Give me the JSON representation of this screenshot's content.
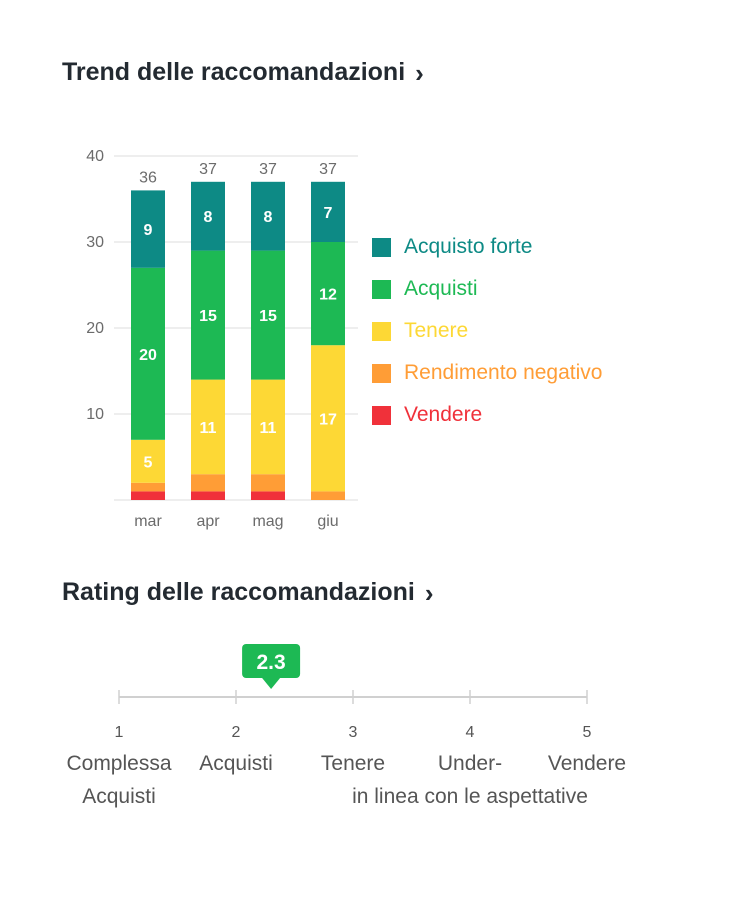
{
  "trend": {
    "title": "Trend delle raccomandazioni",
    "chevron": "›"
  },
  "rating": {
    "title": "Rating delle raccomandazioni",
    "chevron": "›"
  },
  "colors": {
    "strong_buy": "#0d8a85",
    "buy": "#1db954",
    "hold": "#fdd835",
    "underperform": "#ff9d36",
    "sell": "#f0313a",
    "axis_text": "#6b6b6b",
    "grid": "#e8e8e8",
    "rating_badge": "#1db954"
  },
  "chart_data": [
    {
      "type": "bar",
      "stacked": true,
      "categories": [
        "mar",
        "apr",
        "mag",
        "giu"
      ],
      "series": [
        {
          "name": "Vendere",
          "color": "#f0313a",
          "values": [
            1,
            1,
            1,
            0
          ]
        },
        {
          "name": "Rendimento negativo",
          "color": "#ff9d36",
          "values": [
            1,
            2,
            2,
            1
          ]
        },
        {
          "name": "Tenere",
          "color": "#fdd835",
          "values": [
            5,
            11,
            11,
            17
          ]
        },
        {
          "name": "Acquisti",
          "color": "#1db954",
          "values": [
            20,
            15,
            15,
            12
          ]
        },
        {
          "name": "Acquisto forte",
          "color": "#0d8a85",
          "values": [
            9,
            8,
            8,
            7
          ]
        }
      ],
      "totals": [
        "36",
        "37",
        "37",
        "37"
      ],
      "ylim": [
        0,
        40
      ],
      "yticks": [
        "10",
        "20",
        "30",
        "40"
      ],
      "grid": true,
      "legend_position": "right",
      "legend_order": [
        "Acquisto forte",
        "Acquisti",
        "Tenere",
        "Rendimento negativo",
        "Vendere"
      ]
    },
    {
      "type": "scale",
      "value": 2.3,
      "value_label": "2.3",
      "range": [
        1,
        5
      ],
      "ticks": [
        {
          "value": 1,
          "num": "1",
          "lines": [
            "Complessa",
            "Acquisti"
          ]
        },
        {
          "value": 2,
          "num": "2",
          "lines": [
            "Acquisti"
          ]
        },
        {
          "value": 3,
          "num": "3",
          "lines": [
            "Tenere"
          ]
        },
        {
          "value": 4,
          "num": "4",
          "lines": [
            "Under-",
            "in linea con le aspettative"
          ]
        },
        {
          "value": 5,
          "num": "5",
          "lines": [
            "Vendere"
          ]
        }
      ]
    }
  ]
}
